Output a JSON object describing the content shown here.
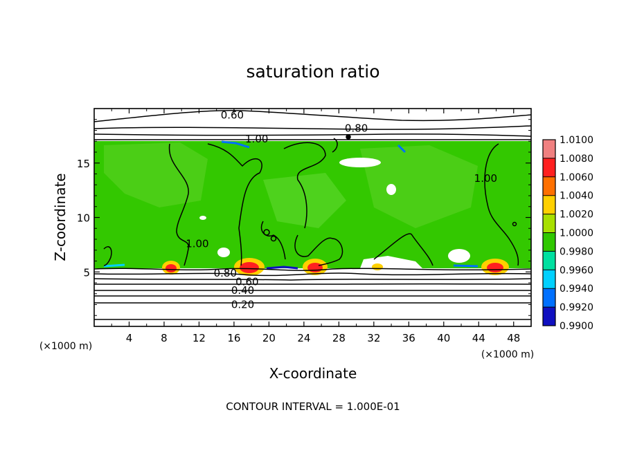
{
  "chart_data": {
    "type": "heatmap",
    "title": "saturation ratio",
    "xlabel": "X-coordinate",
    "ylabel": "Z-coordinate",
    "x_unit": "(×1000 m)",
    "y_unit": "(×1000 m)",
    "xlim": [
      0,
      50
    ],
    "ylim": [
      0,
      20
    ],
    "x_ticks": [
      4,
      8,
      12,
      16,
      20,
      24,
      28,
      32,
      36,
      40,
      44,
      48
    ],
    "y_ticks": [
      5,
      10,
      15
    ],
    "footer": "CONTOUR INTERVAL = 1.000E-01",
    "colorbar": {
      "levels": [
        "1.0100",
        "1.0080",
        "1.0060",
        "1.0040",
        "1.0020",
        "1.0000",
        "0.9980",
        "0.9960",
        "0.9940",
        "0.9920",
        "0.9900"
      ],
      "colors": [
        "#f08080",
        "#ff2020",
        "#ff7000",
        "#ffd000",
        "#a8e000",
        "#30c800",
        "#00e0a0",
        "#00d0ff",
        "#0070ff",
        "#1010c0",
        "#6000a0"
      ]
    },
    "contour_labels": [
      {
        "text": "0.60",
        "x": 15.8,
        "z": 19.4
      },
      {
        "text": "0.80",
        "x": 30.0,
        "z": 18.2
      },
      {
        "text": "1.00",
        "x": 18.6,
        "z": 17.2
      },
      {
        "text": "1.00",
        "x": 44.8,
        "z": 13.6
      },
      {
        "text": "1.00",
        "x": 11.8,
        "z": 7.6
      },
      {
        "text": "0.80",
        "x": 15.0,
        "z": 4.9
      },
      {
        "text": "0.60",
        "x": 17.5,
        "z": 4.1
      },
      {
        "text": "0.40",
        "x": 17.0,
        "z": 3.3
      },
      {
        "text": "0.20",
        "x": 17.0,
        "z": 2.0
      }
    ],
    "grid": false,
    "colorbar_position": "right"
  }
}
